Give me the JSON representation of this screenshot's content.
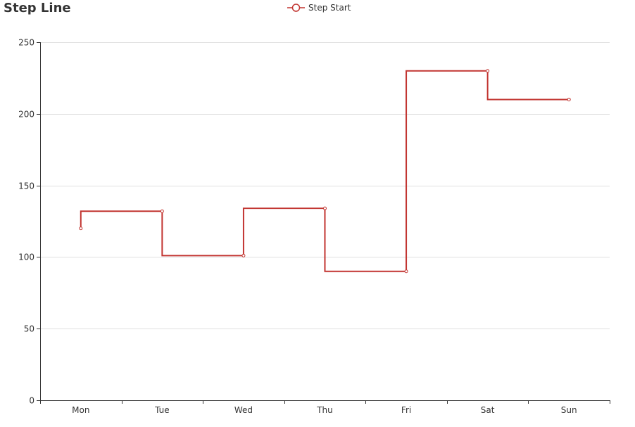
{
  "chart_data": {
    "type": "line",
    "title": "Step Line",
    "step": "start",
    "categories": [
      "Mon",
      "Tue",
      "Wed",
      "Thu",
      "Fri",
      "Sat",
      "Sun"
    ],
    "series": [
      {
        "name": "Step Start",
        "values": [
          120,
          132,
          101,
          134,
          90,
          230,
          210
        ],
        "color": "#c23531"
      }
    ],
    "y_ticks": [
      0,
      50,
      100,
      150,
      200,
      250
    ],
    "ylim": [
      0,
      250
    ],
    "xlabel": "",
    "ylabel": "",
    "grid": true,
    "legend_position": "top-center"
  }
}
